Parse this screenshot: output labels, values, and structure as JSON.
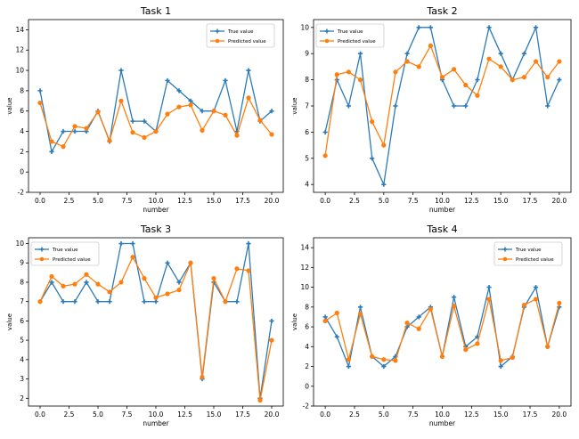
{
  "colors": {
    "true": "#2b7bb9",
    "predicted": "#ff7f0e",
    "axis": "#000000"
  },
  "chart_data": [
    {
      "type": "line",
      "title": "Task 1",
      "xlabel": "number",
      "ylabel": "value",
      "xlim": [
        -1,
        21
      ],
      "ylim": [
        -2,
        15
      ],
      "xticks": [
        "0.0",
        "2.5",
        "5.0",
        "7.5",
        "10.0",
        "12.5",
        "15.0",
        "17.5",
        "20.0"
      ],
      "yticks": [
        "-2",
        "0",
        "2",
        "4",
        "6",
        "8",
        "10",
        "12",
        "14"
      ],
      "legend": "top-right",
      "x": [
        0,
        1,
        2,
        3,
        4,
        5,
        6,
        7,
        8,
        9,
        10,
        11,
        12,
        13,
        14,
        15,
        16,
        17,
        18,
        19,
        20
      ],
      "series": [
        {
          "name": "True value",
          "values": [
            8,
            2,
            4,
            4,
            4,
            6,
            3,
            10,
            5,
            5,
            4,
            9,
            8,
            7,
            6,
            6,
            9,
            4,
            10,
            5,
            6
          ]
        },
        {
          "name": "Predicted value",
          "values": [
            6.8,
            3.0,
            2.5,
            4.5,
            4.3,
            5.9,
            3.1,
            7.0,
            3.9,
            3.4,
            4.0,
            5.7,
            6.4,
            6.6,
            4.1,
            6.0,
            5.6,
            3.6,
            7.3,
            5.1,
            3.7
          ]
        }
      ]
    },
    {
      "type": "line",
      "title": "Task 2",
      "xlabel": "number",
      "ylabel": "value",
      "xlim": [
        -1,
        21
      ],
      "ylim": [
        3.7,
        10.3
      ],
      "xticks": [
        "0.0",
        "2.5",
        "5.0",
        "7.5",
        "10.0",
        "12.5",
        "15.0",
        "17.5",
        "20.0"
      ],
      "yticks": [
        "4",
        "5",
        "6",
        "7",
        "8",
        "9",
        "10"
      ],
      "legend": "top-left",
      "x": [
        0,
        1,
        2,
        3,
        4,
        5,
        6,
        7,
        8,
        9,
        10,
        11,
        12,
        13,
        14,
        15,
        16,
        17,
        18,
        19,
        20
      ],
      "series": [
        {
          "name": "True value",
          "values": [
            6,
            8,
            7,
            9,
            5,
            4,
            7,
            9,
            10,
            10,
            8,
            7,
            7,
            8,
            10,
            9,
            8,
            9,
            10,
            7,
            8
          ]
        },
        {
          "name": "Predicted value",
          "values": [
            5.1,
            8.2,
            8.3,
            8.0,
            6.4,
            5.5,
            8.3,
            8.7,
            8.5,
            9.3,
            8.1,
            8.4,
            7.8,
            7.4,
            8.8,
            8.5,
            8.0,
            8.1,
            8.7,
            8.1,
            8.7
          ]
        }
      ]
    },
    {
      "type": "line",
      "title": "Task 3",
      "xlabel": "number",
      "ylabel": "value",
      "xlim": [
        -1,
        21
      ],
      "ylim": [
        1.6,
        10.3
      ],
      "xticks": [
        "0.0",
        "2.5",
        "5.0",
        "7.5",
        "10.0",
        "12.5",
        "15.0",
        "17.5",
        "20.0"
      ],
      "yticks": [
        "2",
        "3",
        "4",
        "5",
        "6",
        "7",
        "8",
        "9",
        "10"
      ],
      "legend": "top-left",
      "x": [
        0,
        1,
        2,
        3,
        4,
        5,
        6,
        7,
        8,
        9,
        10,
        11,
        12,
        13,
        14,
        15,
        16,
        17,
        18,
        19,
        20
      ],
      "series": [
        {
          "name": "True value",
          "values": [
            7,
            8,
            7,
            7,
            8,
            7,
            7,
            10,
            10,
            7,
            7,
            9,
            8,
            9,
            3,
            8,
            7,
            7,
            10,
            2,
            6
          ]
        },
        {
          "name": "Predicted value",
          "values": [
            7.0,
            8.3,
            7.8,
            7.9,
            8.4,
            7.9,
            7.5,
            8.0,
            9.3,
            8.2,
            7.2,
            7.4,
            7.6,
            9.0,
            3.1,
            8.2,
            7.0,
            8.7,
            8.6,
            1.9,
            5.0
          ]
        }
      ]
    },
    {
      "type": "line",
      "title": "Task 4",
      "xlabel": "number",
      "ylabel": "value",
      "xlim": [
        -1,
        21
      ],
      "ylim": [
        -2,
        15
      ],
      "xticks": [
        "0.0",
        "2.5",
        "5.0",
        "7.5",
        "10.0",
        "12.5",
        "15.0",
        "17.5",
        "20.0"
      ],
      "yticks": [
        "-2",
        "0",
        "2",
        "4",
        "6",
        "8",
        "10",
        "12",
        "14"
      ],
      "legend": "top-right",
      "x": [
        0,
        1,
        2,
        3,
        4,
        5,
        6,
        7,
        8,
        9,
        10,
        11,
        12,
        13,
        14,
        15,
        16,
        17,
        18,
        19,
        20
      ],
      "series": [
        {
          "name": "True value",
          "values": [
            7,
            5,
            2,
            8,
            3,
            2,
            3,
            6,
            7,
            8,
            3,
            9,
            4,
            5,
            10,
            2,
            3,
            8,
            10,
            4,
            8
          ]
        },
        {
          "name": "Predicted value",
          "values": [
            6.6,
            7.4,
            2.7,
            7.3,
            3.0,
            2.7,
            2.6,
            6.4,
            5.8,
            7.8,
            3.0,
            8.1,
            3.7,
            4.3,
            8.8,
            2.6,
            2.9,
            8.2,
            8.8,
            4.0,
            8.4
          ]
        }
      ]
    }
  ]
}
